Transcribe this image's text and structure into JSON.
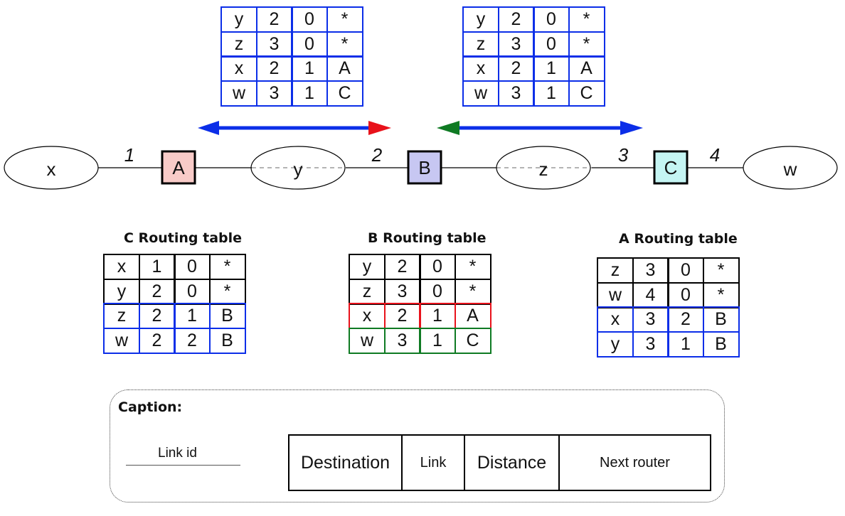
{
  "network": {
    "nodes": [
      {
        "id": "x",
        "type": "network",
        "label": "x"
      },
      {
        "id": "A",
        "type": "router",
        "label": "A",
        "color": "#f8cbc8"
      },
      {
        "id": "y",
        "type": "network",
        "label": "y"
      },
      {
        "id": "B",
        "type": "router",
        "label": "B",
        "color": "#c7c7f2"
      },
      {
        "id": "z",
        "type": "network",
        "label": "z"
      },
      {
        "id": "C",
        "type": "router",
        "label": "C",
        "color": "#c5f5f3"
      },
      {
        "id": "w",
        "type": "network",
        "label": "w"
      }
    ],
    "links": [
      {
        "id": "1",
        "label": "1"
      },
      {
        "id": "2",
        "label": "2"
      },
      {
        "id": "3",
        "label": "3"
      },
      {
        "id": "4",
        "label": "4"
      }
    ]
  },
  "colors": {
    "blue": "#0b2ee8",
    "red": "#e8121b",
    "green": "#0f7a23",
    "black": "#000000"
  },
  "advert_left": {
    "rows": [
      [
        "y",
        "2",
        "0",
        "*"
      ],
      [
        "z",
        "3",
        "0",
        "*"
      ],
      [
        "x",
        "2",
        "1",
        "A"
      ],
      [
        "w",
        "3",
        "1",
        "C"
      ]
    ]
  },
  "advert_right": {
    "rows": [
      [
        "y",
        "2",
        "0",
        "*"
      ],
      [
        "z",
        "3",
        "0",
        "*"
      ],
      [
        "x",
        "2",
        "1",
        "A"
      ],
      [
        "w",
        "3",
        "1",
        "C"
      ]
    ]
  },
  "c_table": {
    "title": "C Routing table",
    "rows": [
      [
        "x",
        "1",
        "0",
        "*"
      ],
      [
        "y",
        "2",
        "0",
        "*"
      ],
      [
        "z",
        "2",
        "1",
        "B"
      ],
      [
        "w",
        "2",
        "2",
        "B"
      ]
    ]
  },
  "b_table": {
    "title": "B Routing table",
    "rows": [
      [
        "y",
        "2",
        "0",
        "*"
      ],
      [
        "z",
        "3",
        "0",
        "*"
      ],
      [
        "x",
        "2",
        "1",
        "A"
      ],
      [
        "w",
        "3",
        "1",
        "C"
      ]
    ]
  },
  "a_table": {
    "title": "A Routing table",
    "rows": [
      [
        "z",
        "3",
        "0",
        "*"
      ],
      [
        "w",
        "4",
        "0",
        "*"
      ],
      [
        "x",
        "3",
        "2",
        "B"
      ],
      [
        "y",
        "3",
        "1",
        "B"
      ]
    ]
  },
  "caption": {
    "title": "Caption:",
    "link_id_label": "Link id",
    "columns": [
      "Destination",
      "Link",
      "Distance",
      "Next router"
    ]
  }
}
